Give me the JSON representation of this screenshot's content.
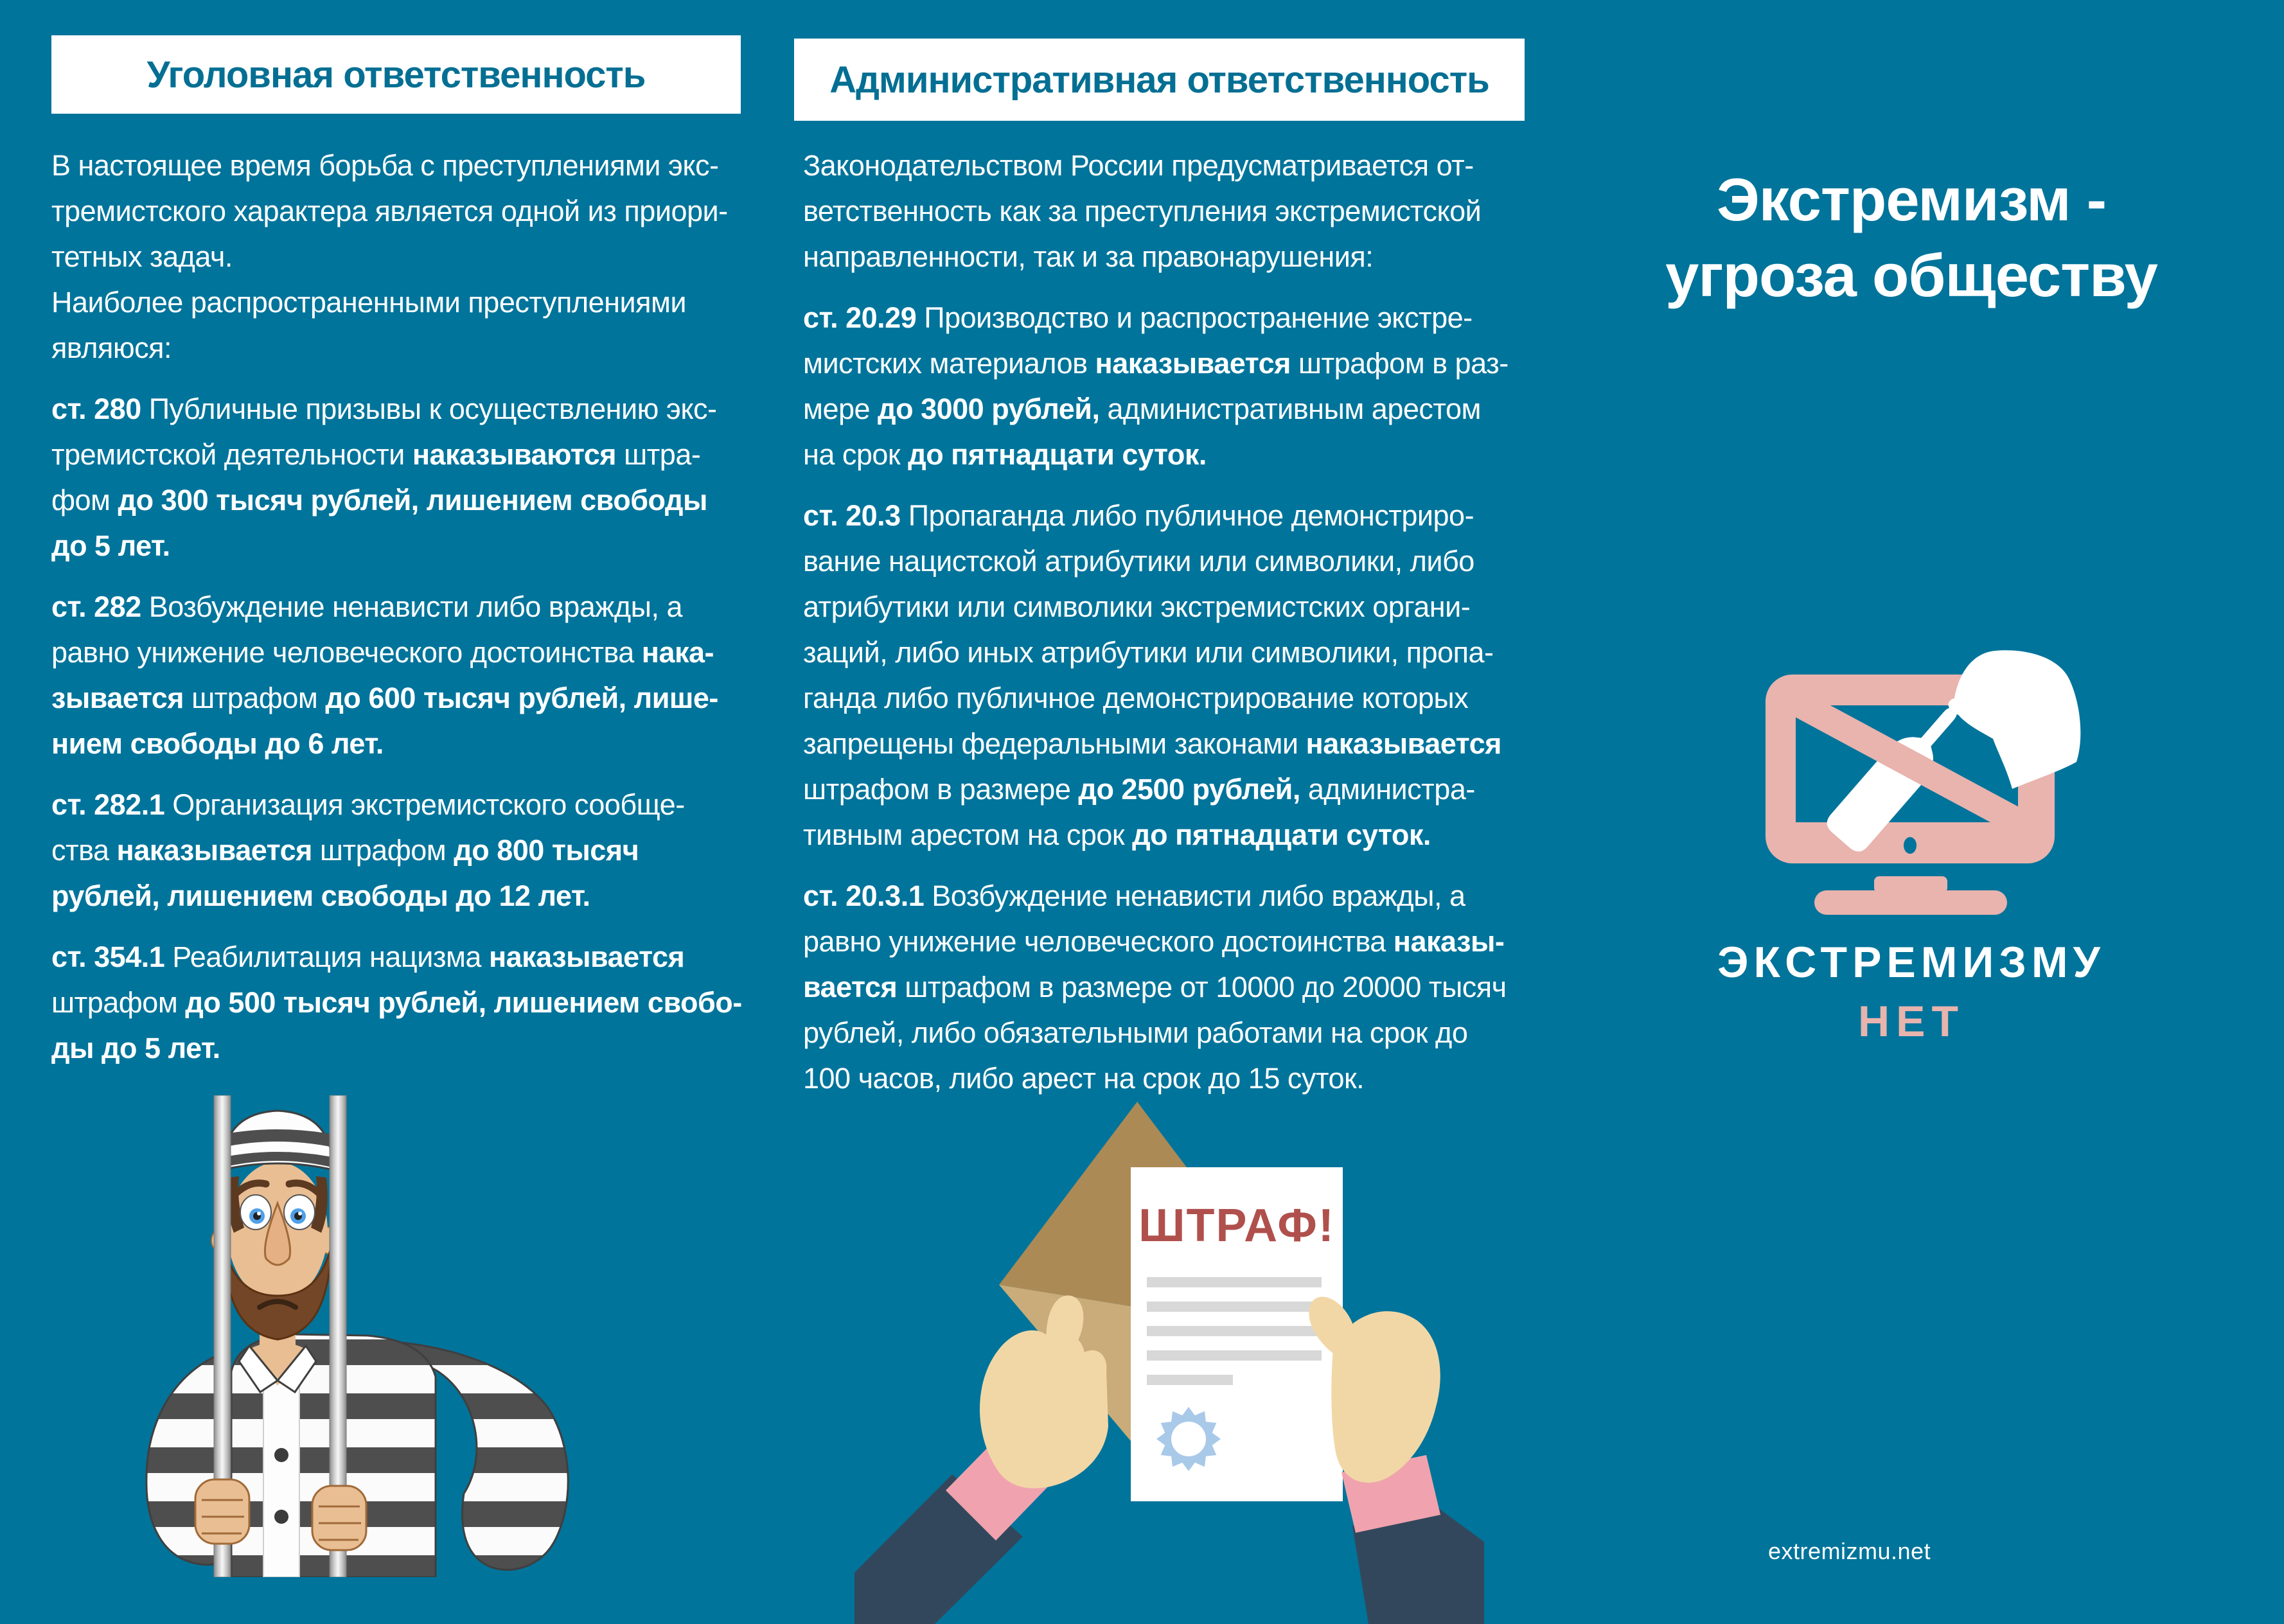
{
  "page": {
    "background_color": "#00749B",
    "header_text_color": "#046F93",
    "accent_pink": "#E9B3AE",
    "fine_red": "#B0504C"
  },
  "left_column": {
    "header": "Уголовная ответственность",
    "paragraphs": [
      [
        [
          {
            "t": "В настоящее время борьба с преступлениями экс-",
            "b": false
          }
        ],
        [
          {
            "t": "тремистского характера является одной из приори-",
            "b": false
          }
        ],
        [
          {
            "t": "тетных задач.",
            "b": false
          }
        ],
        [
          {
            "t": "Наиболее распространенными преступлениями",
            "b": false
          }
        ],
        [
          {
            "t": "являюся:",
            "b": false
          }
        ]
      ],
      [
        [
          {
            "t": "ст. 280",
            "b": true
          },
          {
            "t": " Публичные призывы к осуществлению экс-",
            "b": false
          }
        ],
        [
          {
            "t": "тремистской деятельности ",
            "b": false
          },
          {
            "t": "наказываются",
            "b": true
          },
          {
            "t": " штра-",
            "b": false
          }
        ],
        [
          {
            "t": "фом ",
            "b": false
          },
          {
            "t": "до 300 тысяч рублей, лишением свободы",
            "b": true
          }
        ],
        [
          {
            "t": "до 5 лет.",
            "b": true
          }
        ]
      ],
      [
        [
          {
            "t": "ст. 282",
            "b": true
          },
          {
            "t": " Возбуждение ненависти либо вражды, а",
            "b": false
          }
        ],
        [
          {
            "t": "равно унижение человеческого достоинства ",
            "b": false
          },
          {
            "t": "нака-",
            "b": true
          }
        ],
        [
          {
            "t": "зывается",
            "b": true
          },
          {
            "t": " штрафом ",
            "b": false
          },
          {
            "t": "до 600 тысяч рублей, лише-",
            "b": true
          }
        ],
        [
          {
            "t": "нием свободы до 6 лет.",
            "b": true
          }
        ]
      ],
      [
        [
          {
            "t": "ст. 282.1",
            "b": true
          },
          {
            "t": " Организация экстремистского сообще-",
            "b": false
          }
        ],
        [
          {
            "t": "ства ",
            "b": false
          },
          {
            "t": "наказывается",
            "b": true
          },
          {
            "t": " штрафом ",
            "b": false
          },
          {
            "t": "до 800 тысяч",
            "b": true
          }
        ],
        [
          {
            "t": "рублей, лишением свободы до 12 лет.",
            "b": true
          }
        ]
      ],
      [
        [
          {
            "t": "ст. 354.1",
            "b": true
          },
          {
            "t": " Реабилитация нацизма ",
            "b": false
          },
          {
            "t": "наказывается",
            "b": true
          }
        ],
        [
          {
            "t": "штрафом ",
            "b": false
          },
          {
            "t": "до 500 тысяч рублей, лишением свобо-",
            "b": true
          }
        ],
        [
          {
            "t": "ды до 5 лет.",
            "b": true
          }
        ]
      ]
    ]
  },
  "middle_column": {
    "header": "Административная ответственность",
    "paragraphs": [
      [
        [
          {
            "t": "Законодательством России предусматривается от-",
            "b": false
          }
        ],
        [
          {
            "t": "ветственность как за преступления экстремистской",
            "b": false
          }
        ],
        [
          {
            "t": "направленности, так и за правонарушения:",
            "b": false
          }
        ]
      ],
      [
        [
          {
            "t": "ст. 20.29",
            "b": true
          },
          {
            "t": " Производство и распространение экстре-",
            "b": false
          }
        ],
        [
          {
            "t": "мистских материалов ",
            "b": false
          },
          {
            "t": "наказывается",
            "b": true
          },
          {
            "t": " штрафом в раз-",
            "b": false
          }
        ],
        [
          {
            "t": "мере ",
            "b": false
          },
          {
            "t": "до 3000 рублей,",
            "b": true
          },
          {
            "t": " административным арестом",
            "b": false
          }
        ],
        [
          {
            "t": "на срок ",
            "b": false
          },
          {
            "t": "до пятнадцати суток.",
            "b": true
          }
        ]
      ],
      [
        [
          {
            "t": "ст. 20.3",
            "b": true
          },
          {
            "t": " Пропаганда либо публичное демонстриро-",
            "b": false
          }
        ],
        [
          {
            "t": "вание нацистской атрибутики или символики, либо",
            "b": false
          }
        ],
        [
          {
            "t": "атрибутики или символики экстремистских органи-",
            "b": false
          }
        ],
        [
          {
            "t": "заций, либо иных атрибутики или символики, пропа-",
            "b": false
          }
        ],
        [
          {
            "t": "ганда либо публичное демонстрирование которых",
            "b": false
          }
        ],
        [
          {
            "t": "запрещены федеральными законами ",
            "b": false
          },
          {
            "t": "наказывается",
            "b": true
          }
        ],
        [
          {
            "t": "штрафом в размере ",
            "b": false
          },
          {
            "t": "до 2500 рублей,",
            "b": true
          },
          {
            "t": " администра-",
            "b": false
          }
        ],
        [
          {
            "t": "тивным арестом на срок ",
            "b": false
          },
          {
            "t": "до пятнадцати суток.",
            "b": true
          }
        ]
      ],
      [
        [
          {
            "t": "ст. 20.3.1",
            "b": true
          },
          {
            "t": " Возбуждение ненависти либо вражды, а",
            "b": false
          }
        ],
        [
          {
            "t": "равно унижение человеческого достоинства ",
            "b": false
          },
          {
            "t": "наказы-",
            "b": true
          }
        ],
        [
          {
            "t": "вается",
            "b": true
          },
          {
            "t": " штрафом в размере от 10000 до 20000 тысяч",
            "b": false
          }
        ],
        [
          {
            "t": "рублей, либо обязательными работами на срок до",
            "b": false
          }
        ],
        [
          {
            "t": "100 часов, либо арест на срок до 15 суток.",
            "b": false
          }
        ]
      ]
    ]
  },
  "right_column": {
    "title_line1": "Экстремизм -",
    "title_line2": "угроза обществу",
    "slogan_line1": "ЭКСТРЕМИЗМУ",
    "slogan_line2": "НЕТ",
    "website": "extremizmu.net"
  },
  "illustrations": {
    "fine_label": "ШТРАФ!",
    "prisoner_alt": "prisoner-behind-bars",
    "fine_alt": "hands-holding-envelope-with-fine-notice",
    "monitor_alt": "no-extremism-crossed-bottle-on-monitor"
  }
}
